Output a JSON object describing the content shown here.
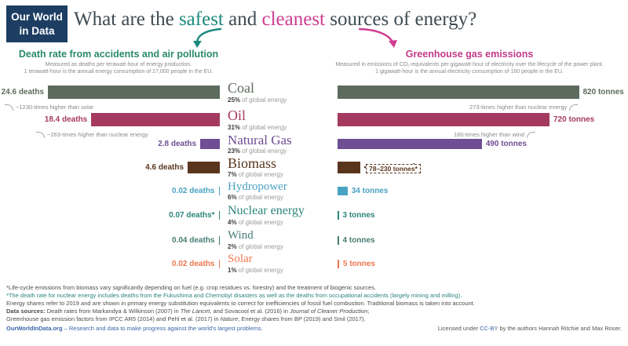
{
  "logo": {
    "line1": "Our World",
    "line2": "in Data"
  },
  "title": {
    "prefix": "What are the ",
    "safest": "safest",
    "mid": " and ",
    "cleanest": "cleanest",
    "suffix": " sources of energy?"
  },
  "left_panel": {
    "heading": "Death rate from accidents and air pollution",
    "sub1": "Measured as deaths per terawatt-hour of energy production.",
    "sub2": "1 terawatt-hour is the annual energy consumption of 27,000 people in the EU."
  },
  "right_panel": {
    "heading": "Greenhouse gas emissions",
    "sub1": "Measured in emissions of CO₂-equivalents per gigawatt-hour of electricity over the lifecycle of the power plant.",
    "sub2": "1 gigawatt-hour is the annual electricity consumption of 160 people in the EU."
  },
  "labels": {
    "share_suffix": " of global energy"
  },
  "rows": [
    {
      "name": "Coal",
      "color": "#5d6b5d",
      "share": "25%",
      "death_label": "24.6 deaths",
      "death_value": 24.6,
      "death_note": "~1230-times higher than solar",
      "ghg_label": "820 tonnes",
      "ghg_value": 820,
      "ghg_note": "273-times higher than nuclear energy"
    },
    {
      "name": "Oil",
      "color": "#a53a60",
      "share": "31%",
      "death_label": "18.4 deaths",
      "death_value": 18.4,
      "death_note": "~263-times higher than nuclear energy",
      "ghg_label": "720 tonnes",
      "ghg_value": 720,
      "ghg_note": "180-times higher than wind"
    },
    {
      "name": "Natural Gas",
      "color": "#6f4e94",
      "share": "23%",
      "death_label": "2.8 deaths",
      "death_value": 2.8,
      "ghg_label": "490 tonnes",
      "ghg_value": 490
    },
    {
      "name": "Biomass",
      "color": "#5a351d",
      "share": "7%",
      "death_label": "4.6 deaths",
      "death_value": 4.6,
      "ghg_range": [
        78,
        230
      ],
      "range_label": "78–230 tonnes*"
    },
    {
      "name": "Hydropower",
      "color": "#4ba3c3",
      "share": "6%",
      "death_label": "0.02 deaths",
      "death_value": 0.02,
      "ghg_label": "34 tonnes",
      "ghg_value": 34
    },
    {
      "name": "Nuclear energy",
      "color": "#2c857b",
      "share": "4%",
      "death_label": "0.07 deaths*",
      "death_value": 0.07,
      "ghg_label": "3 tonnes",
      "ghg_value": 3
    },
    {
      "name": "Wind",
      "color": "#477c74",
      "share": "2%",
      "death_label": "0.04 deaths",
      "death_value": 0.04,
      "ghg_label": "4 tonnes",
      "ghg_value": 4
    },
    {
      "name": "Solar",
      "color": "#f0764f",
      "share": "1%",
      "death_label": "0.02 deaths",
      "death_value": 0.02,
      "ghg_label": "5 tonnes",
      "ghg_value": 5
    }
  ],
  "chart_data": {
    "type": "bar",
    "orientation": "horizontal",
    "title": "What are the safest and cleanest sources of energy?",
    "categories": [
      "Coal",
      "Oil",
      "Natural Gas",
      "Biomass",
      "Hydropower",
      "Nuclear energy",
      "Wind",
      "Solar"
    ],
    "series": [
      {
        "name": "Death rate from accidents and air pollution (deaths per terawatt-hour)",
        "values": [
          24.6,
          18.4,
          2.8,
          4.6,
          0.02,
          0.07,
          0.04,
          0.02
        ]
      },
      {
        "name": "Greenhouse gas emissions (tonnes of CO₂-equivalents per gigawatt-hour)",
        "values": [
          820,
          720,
          490,
          null,
          34,
          3,
          4,
          5
        ],
        "biomass_range": [
          78,
          230
        ]
      }
    ],
    "share_of_global_energy": [
      "25%",
      "31%",
      "23%",
      "7%",
      "6%",
      "4%",
      "2%",
      "1%"
    ],
    "annotations": [
      "Coal deaths ~1230-times higher than solar",
      "Oil deaths ~263-times higher than nuclear energy",
      "Coal emissions 273-times higher than nuclear energy",
      "Oil emissions 180-times higher than wind"
    ],
    "grid": false,
    "legend_position": "none"
  },
  "footnotes": {
    "biomass": "*Life-cycle emissions from biomass vary significantly depending on fuel (e.g. crop residues vs. forestry) and the treatment of biogenic sources.",
    "nuclear": "*The death rate for nuclear energy includes deaths from the Fukushima and Chernobyl disasters as well as the deaths from occupational accidents (largely mining and milling).",
    "energy_shares": "Energy shares refer to 2019 and are shown in primary energy substitution equivalents to correct for inefficiencies of fossil fuel combustion. Traditional biomass is taken into account.",
    "sources_label": "Data sources:",
    "sources_t1": " Death rates from Markandya & Wilkinson (2007) in ",
    "sources_i1": "The Lancet",
    "sources_t2": ", and Sovacool et al. (2016) in ",
    "sources_i2": "Journal of Cleaner Production",
    "sources_t3": ";",
    "ghg_t1": "Greenhouse gas emission factors from IPCC AR5 (2014) and Pehl et al. (2017) in ",
    "ghg_i1": "Nature",
    "ghg_t2": "; Energy shares from BP (2019) and Smil (2017)."
  },
  "credit": {
    "site": "OurWorldInData.org",
    "tagline": " – Research and data to make progress against the world's largest problems.",
    "license_pre": "Licensed under ",
    "license_link": "CC-BY",
    "license_post": " by the authors Hannah Ritchie and Max Roser."
  },
  "colors": {
    "safest": "#1d8a7e",
    "cleanest": "#cf3d92",
    "left_heading": "#2a8a68",
    "right_heading": "#c43a88",
    "logo_bg": "#1d3d63",
    "link_blue": "#3a66a8"
  }
}
